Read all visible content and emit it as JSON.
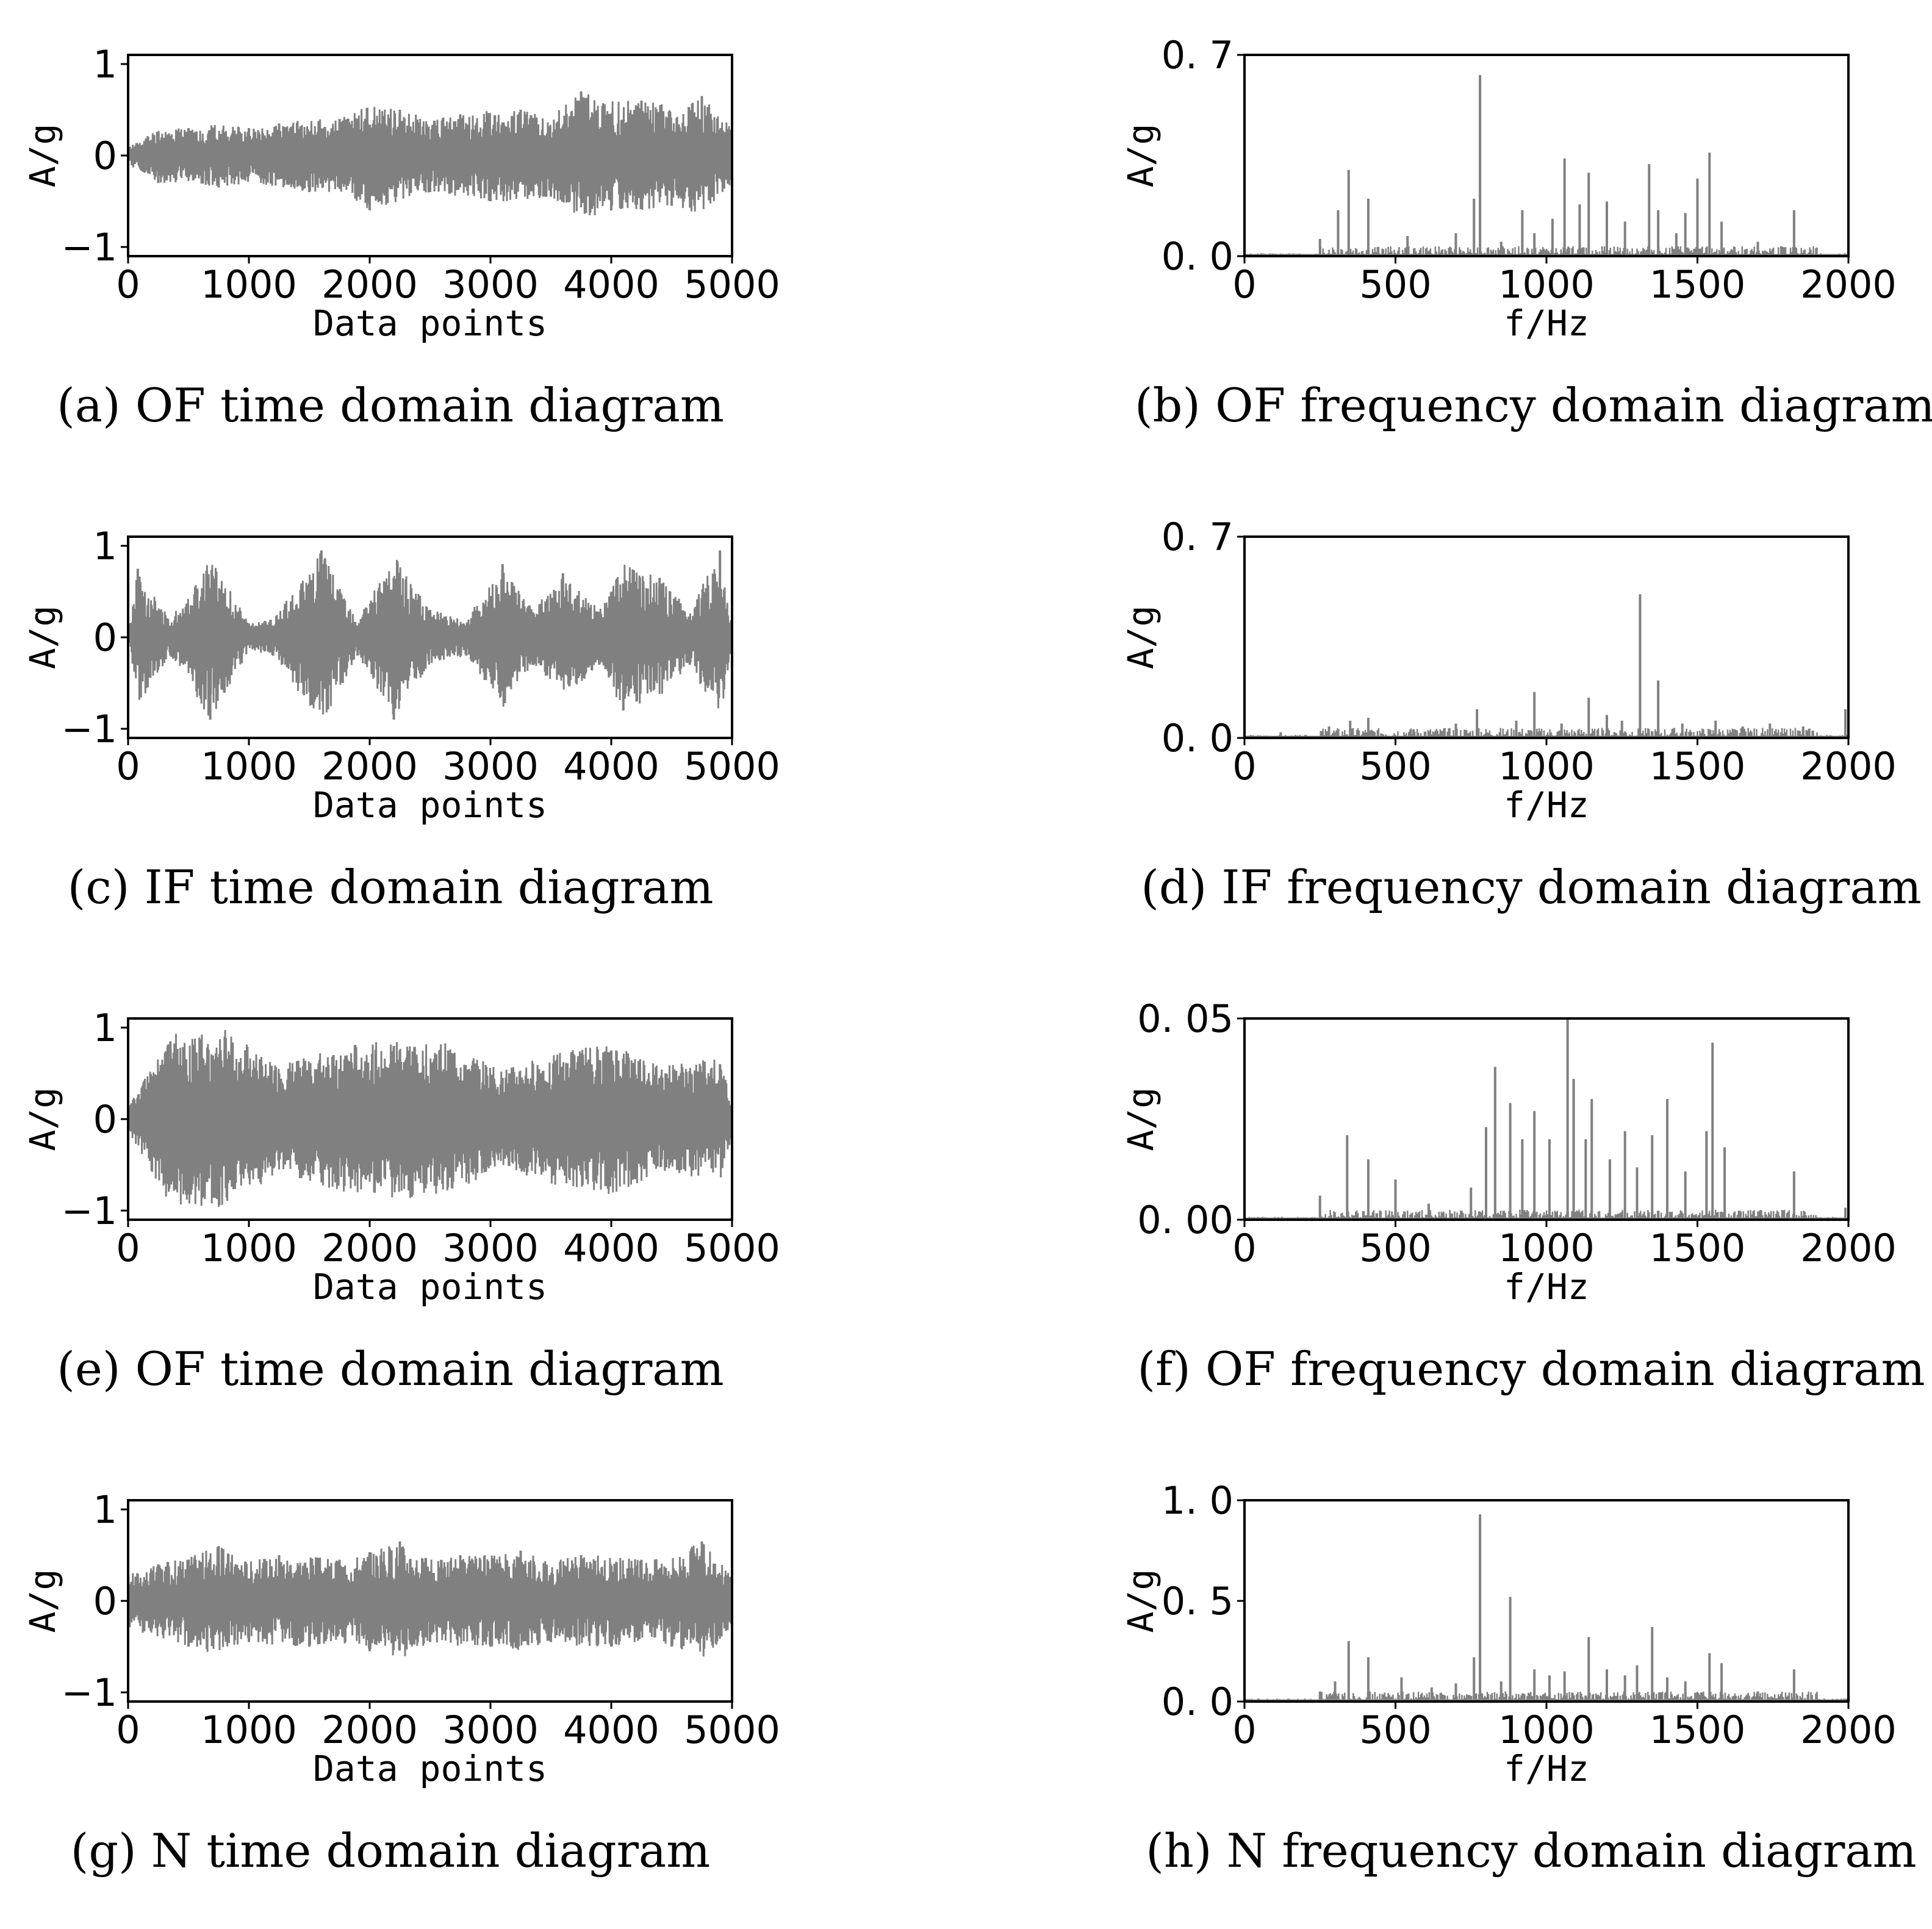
{
  "chart_data": [
    {
      "id": "a",
      "type": "line",
      "caption": "(a) OF time domain diagram",
      "xlabel": "Data points",
      "ylabel": "A/g",
      "xlim": [
        0,
        5000
      ],
      "ylim": [
        -1.1,
        1.1
      ],
      "xticks": [
        0,
        1000,
        2000,
        3000,
        4000,
        5000
      ],
      "xtick_labels": [
        "0",
        "1000",
        "2000",
        "3000",
        "4000",
        "5000"
      ],
      "yticks": [
        -1,
        0,
        1
      ],
      "ytick_labels": [
        "−1",
        "0",
        "1"
      ],
      "color": "#808080",
      "x": [
        0,
        250,
        500,
        750,
        1000,
        1250,
        1500,
        1750,
        2000,
        2250,
        2500,
        2750,
        3000,
        3250,
        3500,
        3750,
        4000,
        4250,
        4500,
        4750,
        5000
      ],
      "series": [
        {
          "values": [
            0.1,
            -0.3,
            0.3,
            -0.35,
            0.3,
            0.35,
            -0.4,
            0.4,
            -0.6,
            0.5,
            -0.4,
            0.45,
            -0.5,
            0.5,
            -0.45,
            0.7,
            -0.6,
            0.6,
            -0.55,
            0.65,
            -0.3
          ]
        }
      ]
    },
    {
      "id": "b",
      "type": "bar",
      "caption": "(b) OF frequency domain diagram",
      "xlabel": "f/Hz",
      "ylabel": "A/g",
      "xlim": [
        0,
        2000
      ],
      "ylim": [
        0,
        0.7
      ],
      "xticks": [
        0,
        500,
        1000,
        1500,
        2000
      ],
      "xtick_labels": [
        "0",
        "500",
        "1000",
        "1500",
        "2000"
      ],
      "yticks": [
        0,
        0.7
      ],
      "ytick_labels": [
        "0. 0",
        "0. 7"
      ],
      "color": "#808080",
      "x": [
        250,
        310,
        345,
        410,
        540,
        700,
        760,
        780,
        850,
        920,
        960,
        1020,
        1060,
        1110,
        1140,
        1200,
        1260,
        1340,
        1370,
        1430,
        1460,
        1500,
        1540,
        1580,
        1700,
        1820
      ],
      "series": [
        {
          "values": [
            0.06,
            0.16,
            0.3,
            0.2,
            0.07,
            0.08,
            0.2,
            0.63,
            0.05,
            0.16,
            0.08,
            0.13,
            0.34,
            0.18,
            0.29,
            0.19,
            0.12,
            0.32,
            0.16,
            0.08,
            0.15,
            0.27,
            0.36,
            0.12,
            0.05,
            0.16
          ]
        }
      ]
    },
    {
      "id": "c",
      "type": "line",
      "caption": "(c) IF time domain diagram",
      "xlabel": "Data points",
      "ylabel": "A/g",
      "xlim": [
        0,
        5000
      ],
      "ylim": [
        -1.1,
        1.1
      ],
      "xticks": [
        0,
        1000,
        2000,
        3000,
        4000,
        5000
      ],
      "xtick_labels": [
        "0",
        "1000",
        "2000",
        "3000",
        "4000",
        "5000"
      ],
      "yticks": [
        -1,
        0,
        1
      ],
      "ytick_labels": [
        "−1",
        "0",
        "1"
      ],
      "color": "#808080",
      "x": [
        0,
        80,
        350,
        680,
        1000,
        1200,
        1600,
        1900,
        2200,
        2500,
        2800,
        3100,
        3350,
        3600,
        3900,
        4100,
        4400,
        4650,
        4900,
        5000
      ],
      "series": [
        {
          "values": [
            0.0,
            0.75,
            -0.2,
            -0.9,
            0.15,
            -0.2,
            0.95,
            -0.2,
            -0.9,
            0.3,
            -0.2,
            0.8,
            -0.3,
            0.7,
            -0.3,
            -0.8,
            0.65,
            -0.3,
            0.95,
            -0.1
          ]
        }
      ]
    },
    {
      "id": "d",
      "type": "bar",
      "caption": "(d) IF frequency domain diagram",
      "xlabel": "f/Hz",
      "ylabel": "A/g",
      "xlim": [
        0,
        2000
      ],
      "ylim": [
        0,
        0.7
      ],
      "xticks": [
        0,
        500,
        1000,
        1500,
        2000
      ],
      "xtick_labels": [
        "0",
        "500",
        "1000",
        "1500",
        "2000"
      ],
      "yticks": [
        0,
        0.7
      ],
      "ytick_labels": [
        "0. 0",
        "0. 7"
      ],
      "color": "#808080",
      "x": [
        120,
        280,
        350,
        410,
        560,
        700,
        770,
        900,
        960,
        1050,
        1140,
        1200,
        1250,
        1310,
        1370,
        1450,
        1560,
        1650,
        1740,
        1850,
        1990
      ],
      "series": [
        {
          "values": [
            0.02,
            0.04,
            0.06,
            0.07,
            0.03,
            0.05,
            0.1,
            0.06,
            0.16,
            0.05,
            0.14,
            0.08,
            0.06,
            0.5,
            0.2,
            0.05,
            0.06,
            0.04,
            0.05,
            0.04,
            0.1
          ]
        }
      ]
    },
    {
      "id": "e",
      "type": "line",
      "caption": "(e) OF time domain diagram",
      "xlabel": "Data points",
      "ylabel": "A/g",
      "xlim": [
        0,
        5000
      ],
      "ylim": [
        -1.1,
        1.1
      ],
      "xticks": [
        0,
        1000,
        2000,
        3000,
        4000,
        5000
      ],
      "xtick_labels": [
        "0",
        "1000",
        "2000",
        "3000",
        "4000",
        "5000"
      ],
      "yticks": [
        -1,
        0,
        1
      ],
      "ytick_labels": [
        "−1",
        "0",
        "1"
      ],
      "color": "#808080",
      "x": [
        0,
        350,
        800,
        1250,
        1700,
        2200,
        2650,
        3100,
        3550,
        4000,
        4450,
        4900,
        5000
      ],
      "series": [
        {
          "values": [
            0.05,
            0.85,
            0.9,
            0.5,
            0.7,
            0.8,
            0.75,
            0.45,
            0.65,
            0.75,
            0.5,
            0.6,
            0.1
          ]
        }
      ]
    },
    {
      "id": "f",
      "type": "bar",
      "caption": "(f) OF frequency domain diagram",
      "xlabel": "f/Hz",
      "ylabel": "A/g",
      "xlim": [
        0,
        2000
      ],
      "ylim": [
        0,
        0.05
      ],
      "xticks": [
        0,
        500,
        1000,
        1500,
        2000
      ],
      "xtick_labels": [
        "0",
        "500",
        "1000",
        "1500",
        "2000"
      ],
      "yticks": [
        0,
        0.05
      ],
      "ytick_labels": [
        "0. 00",
        "0. 05"
      ],
      "color": "#808080",
      "x": [
        250,
        340,
        410,
        500,
        610,
        750,
        800,
        830,
        880,
        920,
        960,
        1010,
        1070,
        1090,
        1130,
        1150,
        1210,
        1260,
        1300,
        1350,
        1400,
        1460,
        1530,
        1550,
        1590,
        1820,
        1990
      ],
      "series": [
        {
          "values": [
            0.006,
            0.021,
            0.015,
            0.01,
            0.004,
            0.008,
            0.023,
            0.038,
            0.029,
            0.02,
            0.027,
            0.02,
            0.05,
            0.035,
            0.02,
            0.03,
            0.015,
            0.022,
            0.013,
            0.021,
            0.03,
            0.012,
            0.022,
            0.044,
            0.018,
            0.012,
            0.003
          ]
        }
      ]
    },
    {
      "id": "g",
      "type": "line",
      "caption": "(g) N time domain diagram",
      "xlabel": "Data points",
      "ylabel": "A/g",
      "xlim": [
        0,
        5000
      ],
      "ylim": [
        -1.1,
        1.1
      ],
      "xticks": [
        0,
        1000,
        2000,
        3000,
        4000,
        5000
      ],
      "xtick_labels": [
        "0",
        "1000",
        "2000",
        "3000",
        "4000",
        "5000"
      ],
      "yticks": [
        -1,
        0,
        1
      ],
      "ytick_labels": [
        "−1",
        "0",
        "1"
      ],
      "color": "#808080",
      "x": [
        0,
        250,
        500,
        750,
        1000,
        1250,
        1500,
        1750,
        2000,
        2250,
        2500,
        2750,
        3000,
        3250,
        3500,
        3750,
        4000,
        4250,
        4500,
        4750,
        5000
      ],
      "series": [
        {
          "values": [
            -0.3,
            0.4,
            -0.5,
            0.6,
            -0.45,
            0.5,
            -0.5,
            0.45,
            -0.55,
            0.65,
            -0.45,
            0.5,
            -0.5,
            0.55,
            -0.45,
            0.5,
            -0.5,
            0.45,
            -0.5,
            0.65,
            -0.3
          ]
        }
      ]
    },
    {
      "id": "h",
      "type": "bar",
      "caption": "(h) N frequency domain diagram",
      "xlabel": "f/Hz",
      "ylabel": "A/g",
      "xlim": [
        0,
        2000
      ],
      "ylim": [
        0,
        1.0
      ],
      "xticks": [
        0,
        500,
        1000,
        1500,
        2000
      ],
      "xtick_labels": [
        "0",
        "500",
        "1000",
        "1500",
        "2000"
      ],
      "yticks": [
        0,
        0.5,
        1.0
      ],
      "ytick_labels": [
        "0. 0",
        "0. 5",
        "1. 0"
      ],
      "color": "#808080",
      "x": [
        250,
        300,
        345,
        410,
        520,
        620,
        700,
        760,
        780,
        850,
        880,
        960,
        1010,
        1060,
        1140,
        1200,
        1260,
        1300,
        1350,
        1400,
        1460,
        1540,
        1580,
        1700,
        1820
      ],
      "series": [
        {
          "values": [
            0.05,
            0.1,
            0.3,
            0.22,
            0.12,
            0.07,
            0.09,
            0.22,
            0.93,
            0.1,
            0.52,
            0.16,
            0.13,
            0.15,
            0.32,
            0.16,
            0.13,
            0.18,
            0.37,
            0.12,
            0.1,
            0.24,
            0.19,
            0.05,
            0.16
          ]
        }
      ]
    }
  ]
}
